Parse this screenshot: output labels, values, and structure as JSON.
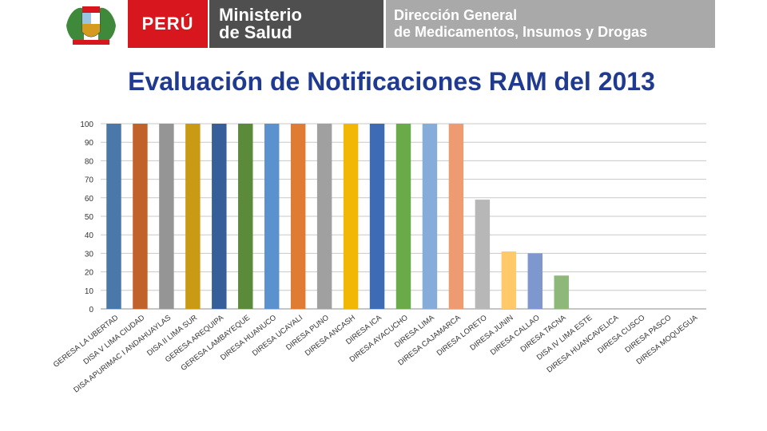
{
  "header": {
    "country": "PERÚ",
    "ministry_line1": "Ministerio",
    "ministry_line2": "de Salud",
    "office_line1": "Dirección General",
    "office_line2": "de Medicamentos, Insumos y Drogas"
  },
  "colors": {
    "peru_red": "#d7161e",
    "ministry_gray": "#4f4f4f",
    "office_gray": "#a9a9a9",
    "title_blue": "#1f3a8f"
  },
  "chart_data": {
    "type": "bar",
    "title": "Evaluación de Notificaciones RAM del 2013",
    "xlabel": "",
    "ylabel": "",
    "ylim": [
      0,
      100
    ],
    "yticks": [
      0,
      10,
      20,
      30,
      40,
      50,
      60,
      70,
      80,
      90,
      100
    ],
    "grid": true,
    "legend": "none",
    "categories": [
      "GERESA LA UBERTAD",
      "DISA V LIMA CIUDAD",
      "DISA APURIMAC I ANDAHUAYLAS",
      "DISA II LIMA SUR",
      "GERESA AREQUIPA",
      "GERESA LAMBAYEQUE",
      "DIRESA HUANUCO",
      "DIRESA UCAYALI",
      "DIRESA PUNO",
      "DIRESA ANCASH",
      "DIRESA ICA",
      "DIRESA AYACUCHO",
      "DIRESA LIMA",
      "DIRESA CAJAMARCA",
      "DIRESA LORETO",
      "DIRESA JUNIN",
      "DIRESA CALLAO",
      "DIRESA TACNA",
      "DISA IV LIMA ESTE",
      "DIRESA HUANCAVELICA",
      "DIRESA CUSCO",
      "DIRESA PASCO",
      "DIRESA MOQUEGUA"
    ],
    "values": [
      100,
      100,
      100,
      100,
      100,
      100,
      100,
      100,
      100,
      100,
      100,
      100,
      100,
      100,
      59,
      31,
      30,
      18,
      0,
      0,
      0,
      0,
      0
    ],
    "bar_colors": [
      "#4a78a8",
      "#c0622a",
      "#959595",
      "#c99a14",
      "#365e99",
      "#5a8a3a",
      "#5b91cf",
      "#e07b33",
      "#a0a0a0",
      "#f2b705",
      "#3e6bb5",
      "#6aaa48",
      "#86acda",
      "#ef9b72",
      "#b7b7b7",
      "#ffc868",
      "#7f97cf",
      "#8db87a",
      "#4a78a8",
      "#c0622a",
      "#959595",
      "#c99a14",
      "#365e99"
    ]
  }
}
